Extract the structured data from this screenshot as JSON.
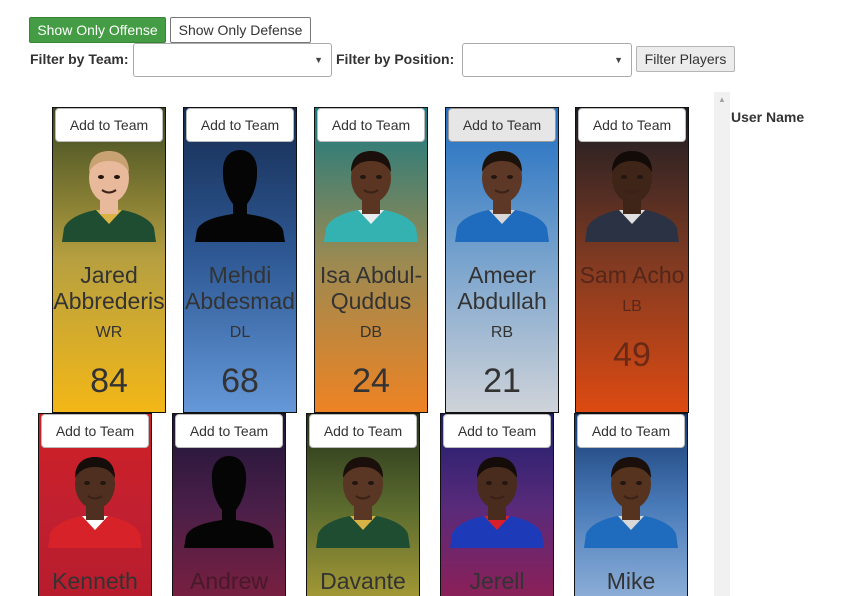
{
  "controls": {
    "offense_label": "Show Only Offense",
    "defense_label": "Show Only Defense",
    "team_filter_label": "Filter by Team:",
    "position_filter_label": "Filter by Position:",
    "filter_button_label": "Filter Players"
  },
  "sidebar": {
    "user_name_label": "User Name"
  },
  "add_label": "Add to Team",
  "players": [
    {
      "first": "Jared",
      "last": "Abbrederis",
      "pos": "WR",
      "num": "84",
      "silhouette": false,
      "skin": "#e8b99a",
      "hair": "#c8a272",
      "jersey": "#1f4d32",
      "collar": "#d9b343",
      "bg": [
        "#3c4a22",
        "#b7a040",
        "#f3b717"
      ]
    },
    {
      "first": "Mehdi",
      "last": "Abdesmad",
      "pos": "DL",
      "num": "68",
      "silhouette": true,
      "skin": "#000",
      "hair": "#000",
      "jersey": "#000",
      "collar": "#000",
      "bg": [
        "#162c52",
        "#2f5a96",
        "#6598d8"
      ]
    },
    {
      "first": "Isa Abdul-",
      "last": "Quddus",
      "pos": "DB",
      "num": "24",
      "silhouette": false,
      "skin": "#5a3522",
      "hair": "#1a0f0a",
      "jersey": "#34b2b2",
      "collar": "#e8eef0",
      "bg": [
        "#197a82",
        "#9a8a52",
        "#ee8324"
      ]
    },
    {
      "first": "Ameer",
      "last": "Abdullah",
      "pos": "RB",
      "num": "21",
      "silhouette": false,
      "skin": "#5d3826",
      "hair": "#1c120c",
      "jersey": "#1f6bbd",
      "collar": "#d8d8d8",
      "bg": [
        "#1f6ec2",
        "#78a3cd",
        "#cfd3d9"
      ]
    },
    {
      "first": "Sam",
      "last": "Acho",
      "pos": "LB",
      "num": "49",
      "silhouette": false,
      "skin": "#3f2518",
      "hair": "#120b08",
      "jersey": "#2a3244",
      "collar": "#e0e0e0",
      "bg": [
        "#1a1d24",
        "#7f3a22",
        "#dd4a12"
      ]
    },
    {
      "first": "Kenneth",
      "last": "",
      "pos": "",
      "num": "",
      "silhouette": false,
      "skin": "#4f2f20",
      "hair": "#150d09",
      "jersey": "#d7222a",
      "collar": "#ffffff",
      "bg": [
        "#cf2024",
        "#c22030",
        "#b71c2c"
      ]
    },
    {
      "first": "Andrew",
      "last": "",
      "pos": "",
      "num": "",
      "silhouette": true,
      "skin": "#000",
      "hair": "#000",
      "jersey": "#000",
      "collar": "#000",
      "bg": [
        "#1d1538",
        "#4a1f48",
        "#7a1f40"
      ]
    },
    {
      "first": "Davante",
      "last": "",
      "pos": "",
      "num": "",
      "silhouette": false,
      "skin": "#5a3624",
      "hair": "#1a0f0a",
      "jersey": "#1f4d32",
      "collar": "#d9b343",
      "bg": [
        "#26331a",
        "#5b6b2e",
        "#a69a36"
      ]
    },
    {
      "first": "Jerell",
      "last": "",
      "pos": "",
      "num": "",
      "silhouette": false,
      "skin": "#4a2c1e",
      "hair": "#140c08",
      "jersey": "#1d3bb8",
      "collar": "#d81f2a",
      "bg": [
        "#1c1f6d",
        "#5a2a7a",
        "#8e1f56"
      ]
    },
    {
      "first": "Mike",
      "last": "",
      "pos": "",
      "num": "",
      "silhouette": false,
      "skin": "#55331f",
      "hair": "#1a0f0a",
      "jersey": "#1f6bbd",
      "collar": "#d8d8d8",
      "bg": [
        "#163a70",
        "#4a7cba",
        "#8fb0d8"
      ]
    }
  ]
}
